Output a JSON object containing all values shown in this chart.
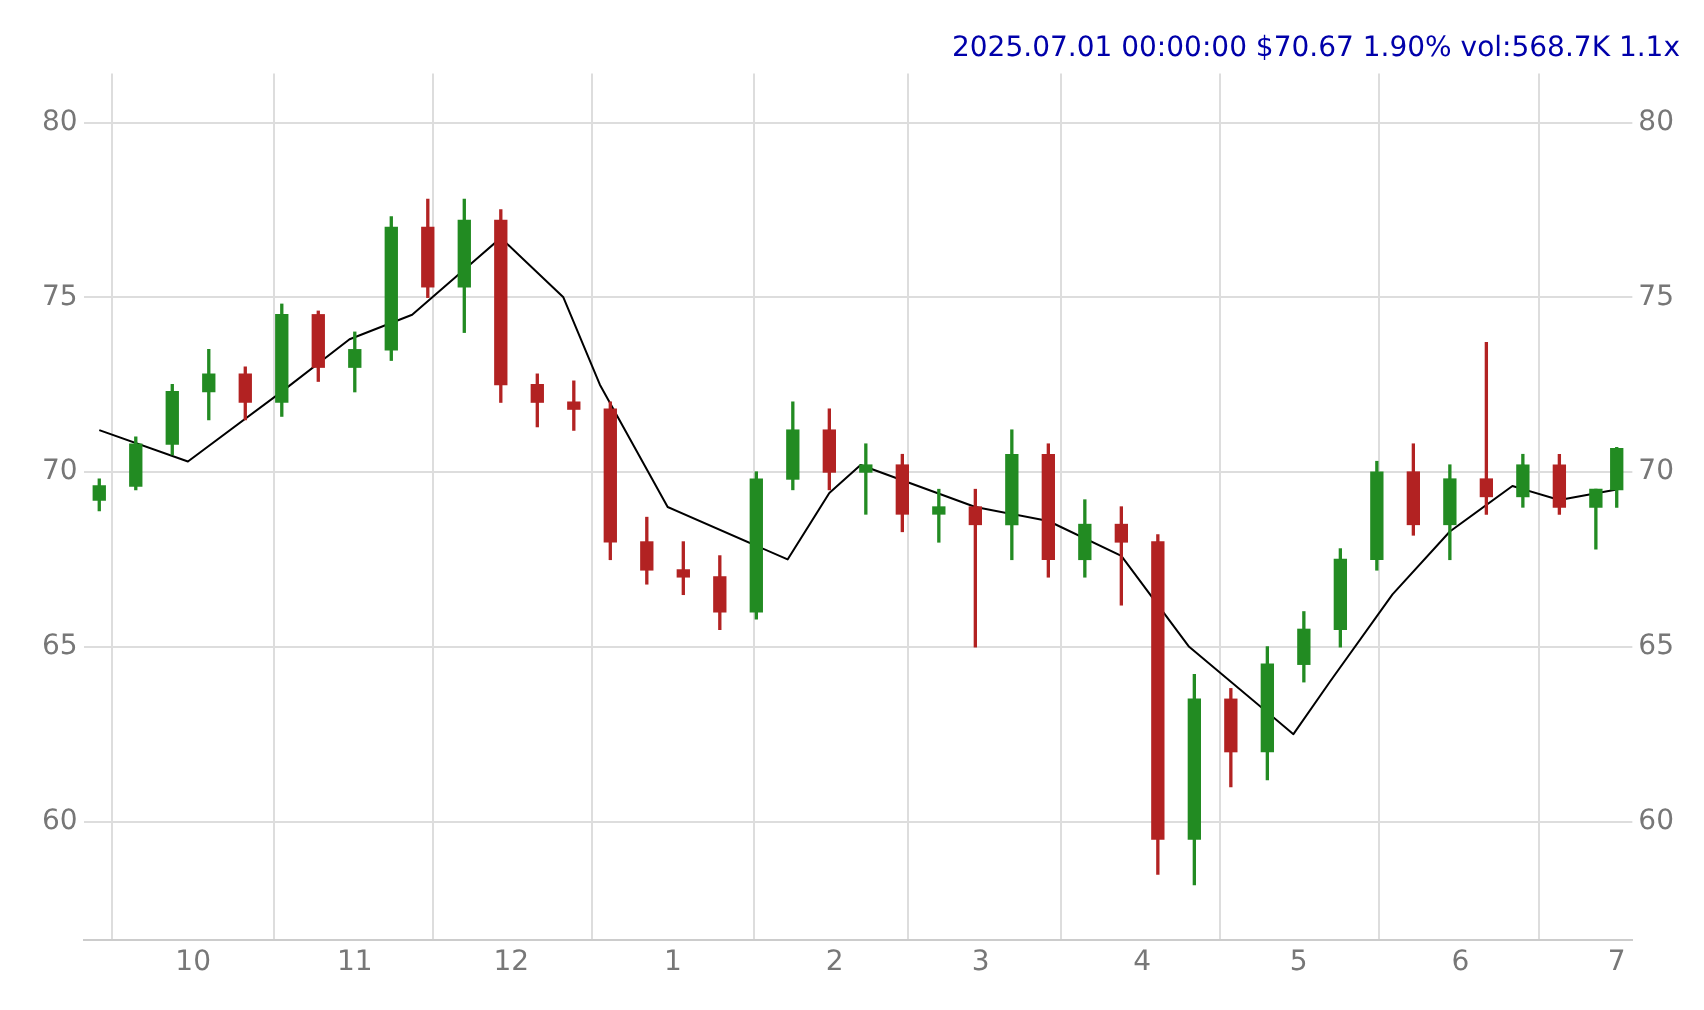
{
  "chart_data": {
    "type": "candlestick",
    "title": "2025.07.01 00:00:00 $70.67 1.90% vol:568.7K 1.1x",
    "x": [
      "2024-09-13",
      "2024-09-20",
      "2024-09-27",
      "2024-10-04",
      "2024-10-11",
      "2024-10-18",
      "2024-10-25",
      "2024-11-01",
      "2024-11-08",
      "2024-11-15",
      "2024-11-22",
      "2024-11-29",
      "2024-12-06",
      "2024-12-13",
      "2024-12-20",
      "2024-12-27",
      "2025-01-03",
      "2025-01-10",
      "2025-01-17",
      "2025-01-24",
      "2025-01-31",
      "2025-02-07",
      "2025-02-14",
      "2025-02-21",
      "2025-02-28",
      "2025-03-07",
      "2025-03-14",
      "2025-03-21",
      "2025-03-28",
      "2025-04-04",
      "2025-04-11",
      "2025-04-18",
      "2025-04-25",
      "2025-05-02",
      "2025-05-09",
      "2025-05-16",
      "2025-05-23",
      "2025-05-30",
      "2025-06-06",
      "2025-06-13",
      "2025-06-20",
      "2025-06-27",
      "2025-07-01"
    ],
    "ohlc": [
      [
        69.2,
        69.8,
        68.9,
        69.6
      ],
      [
        69.6,
        71,
        69.5,
        70.8
      ],
      [
        70.8,
        72.5,
        70.5,
        72.3
      ],
      [
        72.3,
        73.5,
        71.5,
        72.8
      ],
      [
        72.8,
        73,
        71.5,
        72
      ],
      [
        72,
        74.8,
        71.6,
        74.5
      ],
      [
        74.5,
        74.6,
        72.6,
        73
      ],
      [
        73,
        74,
        72.3,
        73.5
      ],
      [
        73.5,
        77.3,
        73.2,
        77
      ],
      [
        77,
        77.8,
        75,
        75.3
      ],
      [
        75.3,
        77.8,
        74,
        77.2
      ],
      [
        77.2,
        77.5,
        72,
        72.5
      ],
      [
        72.5,
        72.8,
        71.3,
        72
      ],
      [
        72,
        72.6,
        71.2,
        71.8
      ],
      [
        71.8,
        72,
        67.5,
        68
      ],
      [
        68,
        68.7,
        66.8,
        67.2
      ],
      [
        67.2,
        68,
        66.5,
        67
      ],
      [
        67,
        67.6,
        65.5,
        66
      ],
      [
        66,
        70,
        65.8,
        69.8
      ],
      [
        69.8,
        72,
        69.5,
        71.2
      ],
      [
        71.2,
        71.8,
        69.5,
        70
      ],
      [
        70,
        70.8,
        68.8,
        70.2
      ],
      [
        70.2,
        70.5,
        68.3,
        68.8
      ],
      [
        68.8,
        69.5,
        68,
        69
      ],
      [
        69,
        69.5,
        65,
        68.5
      ],
      [
        68.5,
        71.2,
        67.5,
        70.5
      ],
      [
        70.5,
        70.8,
        67,
        67.5
      ],
      [
        67.5,
        69.2,
        67,
        68.5
      ],
      [
        68.5,
        69,
        66.2,
        68
      ],
      [
        68,
        68.2,
        58.5,
        59.5
      ],
      [
        59.5,
        64.2,
        58.2,
        63.5
      ],
      [
        63.5,
        63.8,
        61,
        62
      ],
      [
        62,
        65,
        61.2,
        64.5
      ],
      [
        64.5,
        66,
        64,
        65.5
      ],
      [
        65.5,
        67.8,
        65,
        67.5
      ],
      [
        67.5,
        70.3,
        67.2,
        70
      ],
      [
        70,
        70.8,
        68.2,
        68.5
      ],
      [
        68.5,
        70.2,
        67.5,
        69.8
      ],
      [
        69.8,
        73.7,
        68.8,
        69.3
      ],
      [
        69.3,
        70.5,
        69,
        70.2
      ],
      [
        70.2,
        70.5,
        68.8,
        69
      ],
      [
        69,
        69.5,
        67.8,
        69.5
      ],
      [
        69.5,
        70.7,
        69,
        70.67
      ]
    ],
    "colors": [
      "#228b22",
      "#228b22",
      "#228b22",
      "#228b22",
      "#b22222",
      "#228b22",
      "#b22222",
      "#228b22",
      "#228b22",
      "#b22222",
      "#228b22",
      "#b22222",
      "#b22222",
      "#b22222",
      "#b22222",
      "#b22222",
      "#b22222",
      "#b22222",
      "#228b22",
      "#228b22",
      "#b22222",
      "#228b22",
      "#b22222",
      "#228b22",
      "#b22222",
      "#228b22",
      "#b22222",
      "#228b22",
      "#b22222",
      "#b22222",
      "#228b22",
      "#b22222",
      "#228b22",
      "#228b22",
      "#228b22",
      "#228b22",
      "#b22222",
      "#228b22",
      "#b22222",
      "#228b22",
      "#b22222",
      "#228b22",
      "#228b22"
    ],
    "series": [
      {
        "type": "line",
        "color": "#000000",
        "x": [
          "2024-09-13",
          "2024-09-30",
          "2024-10-18",
          "2024-10-31",
          "2024-11-12",
          "2024-11-29",
          "2024-12-11",
          "2024-12-18",
          "2024-12-31",
          "2025-01-23",
          "2025-01-31",
          "2025-02-06",
          "2025-02-28",
          "2025-03-14",
          "2025-03-28",
          "2025-04-10",
          "2025-04-30",
          "2025-05-07",
          "2025-05-19",
          "2025-05-30",
          "2025-06-11",
          "2025-06-20",
          "2025-07-01"
        ],
        "values": [
          71.2,
          70.3,
          72.3,
          73.8,
          74.5,
          76.7,
          75,
          72.5,
          69,
          67.5,
          69.4,
          70.2,
          69,
          68.6,
          67.6,
          65,
          62.5,
          64,
          66.5,
          68.3,
          69.6,
          69.2,
          69.5
        ]
      }
    ],
    "xlim": [
      "2024-09-10",
      "2025-07-04"
    ],
    "xticks": [
      {
        "value": "2024-10-01",
        "label": "10"
      },
      {
        "value": "2024-11-01",
        "label": "11"
      },
      {
        "value": "2024-12-01",
        "label": "12"
      },
      {
        "value": "2025-01-01",
        "label": "1"
      },
      {
        "value": "2025-02-01",
        "label": "2"
      },
      {
        "value": "2025-03-01",
        "label": "3"
      },
      {
        "value": "2025-04-01",
        "label": "4"
      },
      {
        "value": "2025-05-01",
        "label": "5"
      },
      {
        "value": "2025-06-01",
        "label": "6"
      },
      {
        "value": "2025-07-01",
        "label": "7"
      }
    ],
    "ylim": [
      56.6,
      81.4
    ],
    "yticks": [
      60,
      65,
      70,
      75,
      80
    ],
    "y2lim": [
      56.6,
      81.4
    ],
    "y2ticks": [
      60,
      65,
      70,
      75,
      80
    ],
    "grid": true,
    "legend": false
  }
}
